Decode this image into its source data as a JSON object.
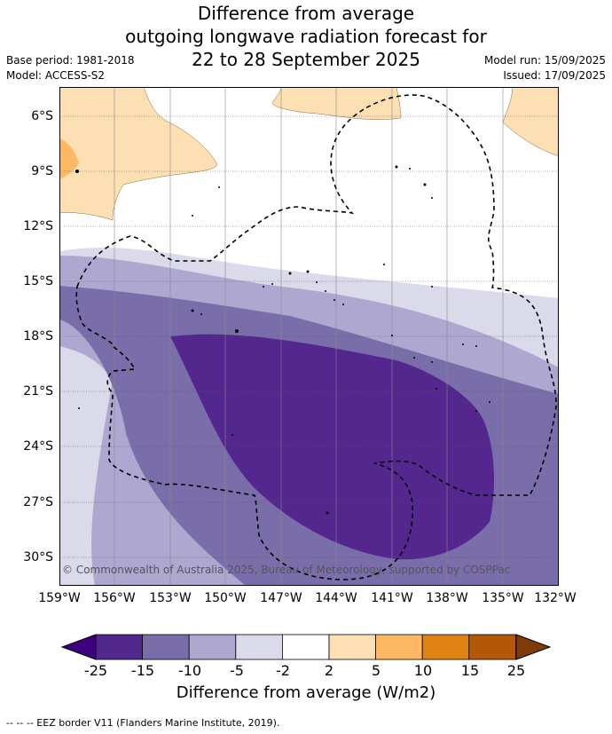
{
  "title": {
    "line1": "Difference from average",
    "line2": "outgoing longwave radiation forecast for",
    "line3": "22 to 28 September 2025"
  },
  "meta": {
    "base_period": "Base period: 1981-2018",
    "model": "Model: ACCESS-S2",
    "model_run": "Model run: 15/09/2025",
    "issued": "Issued: 17/09/2025"
  },
  "map": {
    "lat_labels": [
      "6°S",
      "9°S",
      "12°S",
      "15°S",
      "18°S",
      "21°S",
      "24°S",
      "27°S",
      "30°S"
    ],
    "lon_labels": [
      "159°W",
      "156°W",
      "153°W",
      "150°W",
      "147°W",
      "144°W",
      "141°W",
      "138°W",
      "135°W",
      "132°W"
    ],
    "copyright": "© Commonwealth of Australia 2025, Bureau of Meteorology, supported by COSPPac"
  },
  "colorbar": {
    "ticks": [
      "-25",
      "-15",
      "-10",
      "-5",
      "-2",
      "2",
      "5",
      "10",
      "15",
      "25"
    ],
    "colors": [
      "#3f007d",
      "#54278f",
      "#7a6eaa",
      "#aea8d1",
      "#dadaea",
      "#ffffff",
      "#fddfb4",
      "#fdb863",
      "#e08214",
      "#b35806",
      "#7f3b08"
    ],
    "label": "Difference from average (W/m2)"
  },
  "footnote": "--  --  -- EEZ border V11 (Flanders Marine Institute, 2019)."
}
